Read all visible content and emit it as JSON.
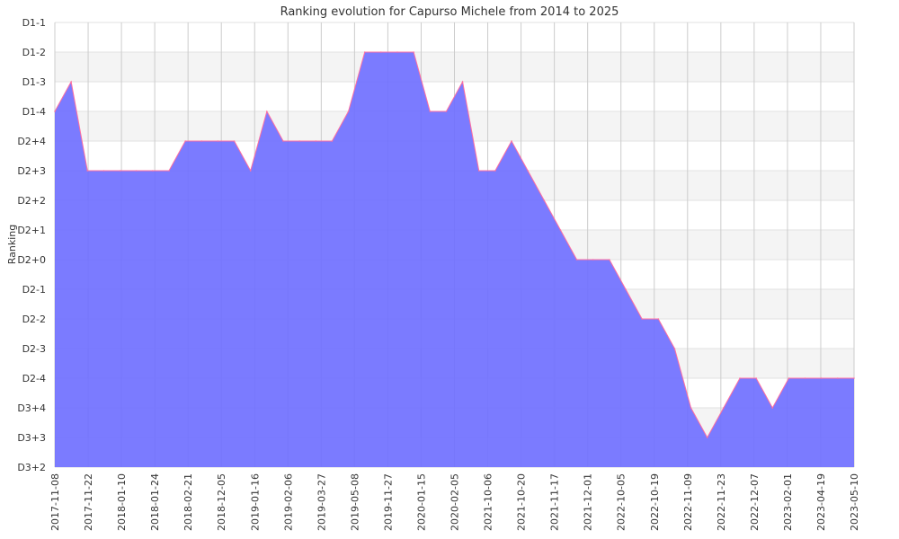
{
  "chart_data": {
    "type": "area",
    "title": "Ranking evolution for Capurso Michele from 2014 to 2025",
    "ylabel": "Ranking",
    "xlabel": "",
    "y_categories": [
      "D1-1",
      "D1-2",
      "D1-3",
      "D1-4",
      "D2+4",
      "D2+3",
      "D2+2",
      "D2+1",
      "D2+0",
      "D2-1",
      "D2-2",
      "D2-3",
      "D2-4",
      "D3+4",
      "D3+3",
      "D3+2"
    ],
    "x_tick_labels": [
      "2017-11-08",
      "2017-11-22",
      "2018-01-10",
      "2018-01-24",
      "2018-02-21",
      "2018-12-05",
      "2019-01-16",
      "2019-02-06",
      "2019-03-27",
      "2019-05-08",
      "2019-11-27",
      "2020-01-15",
      "2020-02-05",
      "2021-10-06",
      "2021-10-20",
      "2021-11-17",
      "2021-12-01",
      "2022-10-05",
      "2022-10-19",
      "2022-11-09",
      "2022-11-23",
      "2022-12-07",
      "2023-02-01",
      "2023-04-19",
      "2023-05-10"
    ],
    "series": [
      {
        "values": [
          "D1-4",
          "D1-3",
          "D2+3",
          "D2+3",
          "D2+3",
          "D2+3",
          "D2+3",
          "D2+3",
          "D2+4",
          "D2+4",
          "D2+4",
          "D2+4",
          "D2+3",
          "D1-4",
          "D2+4",
          "D2+4",
          "D2+4",
          "D2+4",
          "D1-4",
          "D1-2",
          "D1-2",
          "D1-2",
          "D1-2",
          "D1-4",
          "D1-4",
          "D1-3",
          "D2+3",
          "D2+3",
          "D2+4",
          "D2+3",
          "D2+2",
          "D2+1",
          "D2+0",
          "D2+0",
          "D2+0",
          "D2-1",
          "D2-2",
          "D2-2",
          "D2-3",
          "D3+4",
          "D3+3",
          "D3+4",
          "D2-4",
          "D2-4",
          "D3+4",
          "D2-4",
          "D2-4",
          "D2-4",
          "D2-4",
          "D2-4"
        ]
      }
    ],
    "grid": true,
    "legend": "none",
    "colors": {
      "fill": "#7070ff",
      "line": "#ff6fa0",
      "band": "#f4f4f4",
      "grid": "#cccccc"
    }
  }
}
